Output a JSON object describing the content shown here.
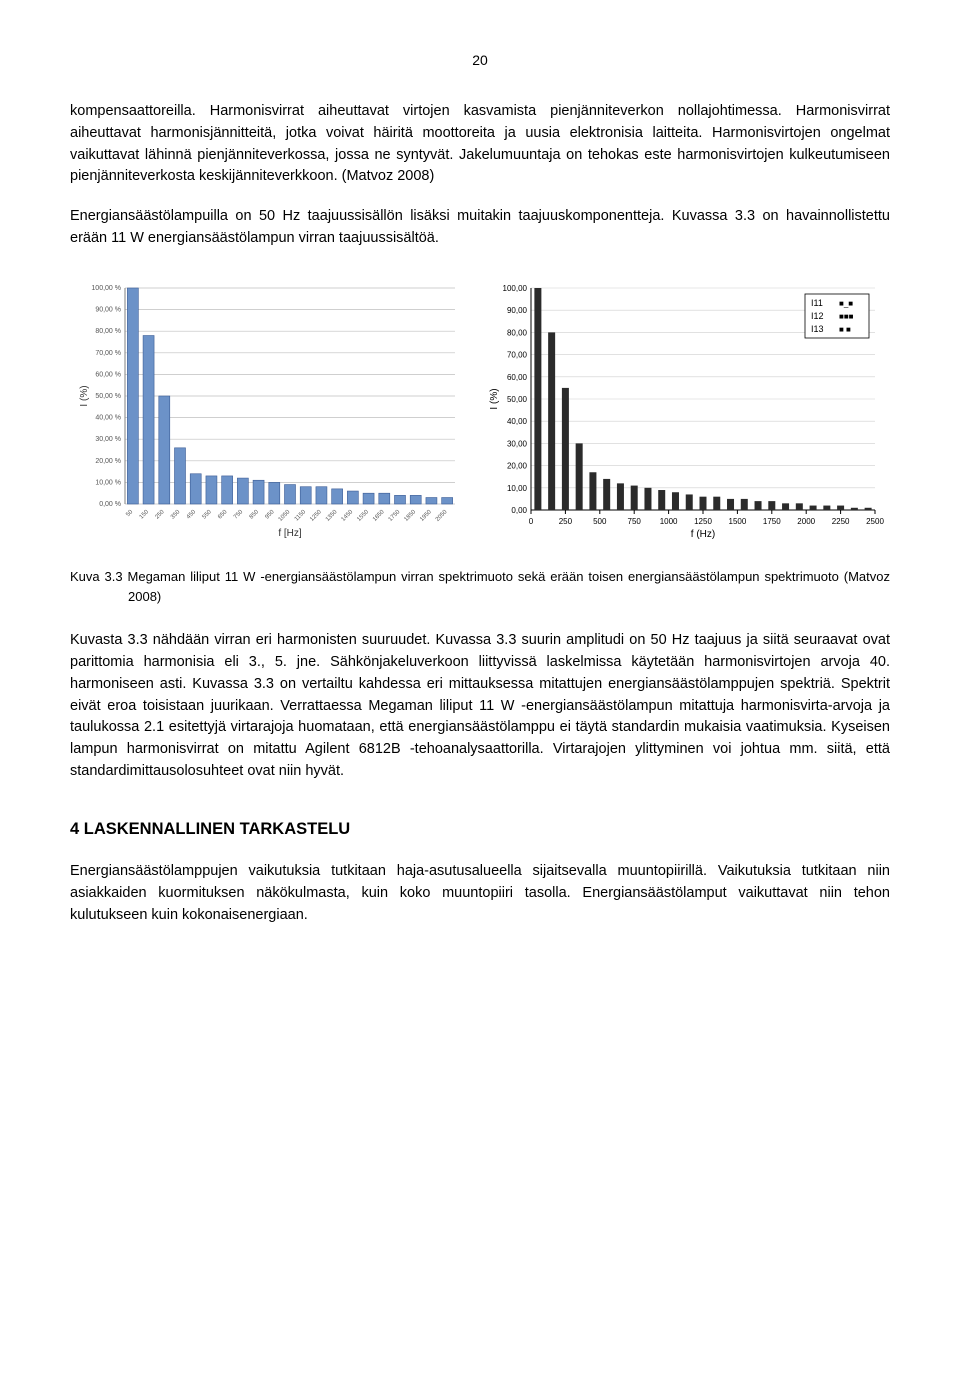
{
  "page_number": "20",
  "para1": "kompensaattoreilla. Harmonisvirrat aiheuttavat virtojen kasvamista pienjänniteverkon nollajohtimessa. Harmonisvirrat aiheuttavat harmonisjännitteitä, jotka voivat häiritä moottoreita ja uusia elektronisia laitteita. Harmonisvirtojen ongelmat vaikuttavat lähinnä pienjänniteverkossa, jossa ne syntyvät. Jakelumuuntaja on tehokas este harmonisvirtojen kulkeutumiseen pienjänniteverkosta keskijänniteverkkoon. (Matvoz 2008)",
  "para2": "Energiansäästölampuilla on 50 Hz taajuussisällön lisäksi muitakin taajuuskomponentteja. Kuvassa 3.3 on havainnollistettu erään 11 W energiansäästölampun virran taajuussisältöä.",
  "figure_caption": "Kuva 3.3 Megaman liliput 11 W -energiansäästölampun virran spektrimuoto sekä erään toisen energiansäästölampun spektrimuoto (Matvoz 2008)",
  "para3": "Kuvasta 3.3 nähdään virran eri harmonisten suuruudet. Kuvassa 3.3 suurin amplitudi on 50 Hz taajuus ja siitä seuraavat ovat parittomia harmonisia eli 3., 5. jne. Sähkönjakeluverkoon liittyvissä laskelmissa käytetään harmonisvirtojen arvoja 40. harmoniseen asti. Kuvassa 3.3 on vertailtu kahdessa eri mittauksessa mitattujen energiansäästölamppujen spektriä. Spektrit eivät eroa toisistaan juurikaan. Verrattaessa Megaman liliput 11 W -energiansäästölampun mitattuja harmonisvirta-arvoja ja taulukossa 2.1 esitettyjä virtarajoja huomataan, että energiansäästölamppu ei täytä standardin mukaisia vaatimuksia. Kyseisen lampun harmonisvirrat on mitattu Agilent 6812B -tehoanalysaattorilla. Virtarajojen ylittyminen voi johtua mm. siitä, että standardimittausolosuhteet ovat niin hyvät.",
  "section_heading": "4   LASKENNALLINEN TARKASTELU",
  "para4": "Energiansäästölamppujen vaikutuksia tutkitaan haja-asutusalueella sijaitsevalla muuntopiirillä. Vaikutuksia tutkitaan niin asiakkaiden kuormituksen näkökulmasta, kuin koko muuntopiiri tasolla. Energiansäästölamput vaikuttavat niin tehon kulutukseen kuin kokonaisenergiaan.",
  "chart_left": {
    "type": "bar",
    "xlabel": "f [Hz]",
    "ylabel": "I (%)",
    "ylim": [
      0,
      100
    ],
    "ytick_step": 10,
    "y_tick_labels": [
      "0,00 %",
      "10,00 %",
      "20,00 %",
      "30,00 %",
      "40,00 %",
      "50,00 %",
      "60,00 %",
      "70,00 %",
      "80,00 %",
      "90,00 %",
      "100,00 %"
    ],
    "x_ticks": [
      50,
      150,
      250,
      350,
      450,
      550,
      650,
      750,
      850,
      950,
      1050,
      1150,
      1250,
      1350,
      1450,
      1550,
      1650,
      1750,
      1850,
      1950,
      2050
    ],
    "values": [
      100,
      78,
      50,
      26,
      14,
      13,
      13,
      12,
      11,
      10,
      9,
      8,
      8,
      7,
      6,
      5,
      5,
      4,
      4,
      3,
      3
    ],
    "bar_color": "#6c92c8",
    "bar_border": "#3b5c95",
    "grid_color": "#bfbfbf",
    "axis_color": "#808080",
    "background_color": "#ffffff",
    "bar_width": 0.7,
    "label_fontsize": 8,
    "tick_fontsize": 6
  },
  "chart_right": {
    "type": "bar-grouped",
    "xlabel": "f (Hz)",
    "ylabel": "I (%)",
    "ylim": [
      0,
      100
    ],
    "ytick_step": 10,
    "y_tick_labels": [
      "0,00",
      "10,00",
      "20,00",
      "30,00",
      "40,00",
      "50,00",
      "60,00",
      "70,00",
      "80,00",
      "90,00",
      "100,00"
    ],
    "x_ticks": [
      0,
      250,
      500,
      750,
      1000,
      1250,
      1500,
      1750,
      2000,
      2250,
      2500
    ],
    "legend": [
      "I11",
      "I12",
      "I13"
    ],
    "marker_styles": [
      "■_■",
      "■■■",
      "■ ■"
    ],
    "categories": [
      50,
      150,
      250,
      350,
      450,
      550,
      650,
      750,
      850,
      950,
      1050,
      1150,
      1250,
      1350,
      1450,
      1550,
      1650,
      1750,
      1850,
      1950,
      2050,
      2150,
      2250,
      2350,
      2450
    ],
    "values": [
      100,
      80,
      55,
      30,
      17,
      14,
      12,
      11,
      10,
      9,
      8,
      7,
      6,
      6,
      5,
      5,
      4,
      4,
      3,
      3,
      2,
      2,
      2,
      1,
      1
    ],
    "bar_color": "#2b2b2b",
    "grid_color": "#cfcfcf",
    "axis_color": "#000000",
    "background_color": "#ffffff",
    "label_fontsize": 9,
    "tick_fontsize": 7,
    "legend_box_border": "#000000"
  }
}
